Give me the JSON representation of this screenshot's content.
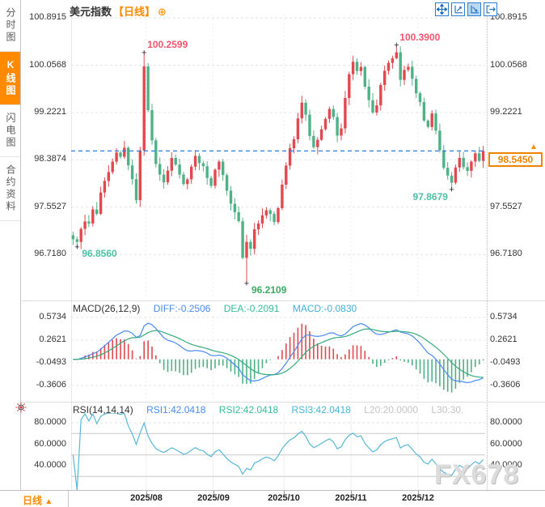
{
  "app": {
    "sidebar": {
      "tabs": [
        {
          "label": "分时图",
          "active": false
        },
        {
          "label": "K线图",
          "active": true
        },
        {
          "label": "闪电图",
          "active": false
        },
        {
          "label": "合约资料",
          "active": false
        }
      ]
    },
    "title": {
      "symbol_label": "美元指数",
      "period_label": "【日线】",
      "add_icon": "⊕"
    },
    "toolbar": {
      "icons": [
        "pan-icon",
        "scale-y-axis-icon",
        "scale-x-axis-icon",
        "exit-chart-icon"
      ]
    },
    "bottom_tab": {
      "label": "日线",
      "arrow": "▲"
    },
    "watermark": "FX678"
  },
  "chart_data": {
    "type": "candlestick+macd+rsi",
    "symbol": "美元指数",
    "interval": "日线",
    "x_axis": {
      "labels": [
        "2025/08",
        "2025/09",
        "2025/10",
        "2025/11",
        "2025/12"
      ],
      "label_indices": [
        19,
        36,
        54,
        71,
        88
      ]
    },
    "price_pane": {
      "y_ticks": [
        "100.8915",
        "100.0568",
        "99.2221",
        "98.3874",
        "97.5527",
        "96.7180"
      ],
      "y_range": [
        95.95,
        100.95
      ],
      "last_price": "98.5450",
      "last_price_value": 98.545,
      "annotations": [
        {
          "text": "100.2599",
          "index": 18,
          "value": 100.2599,
          "kind": "high",
          "color": "#f4566e"
        },
        {
          "text": "100.3900",
          "index": 82,
          "value": 100.39,
          "kind": "high",
          "color": "#f4566e"
        },
        {
          "text": "96.8560",
          "index": 1,
          "value": 96.856,
          "kind": "low",
          "color": "#4ec0a4"
        },
        {
          "text": "96.2109",
          "index": 44,
          "value": 96.2109,
          "kind": "low",
          "color": "#3bab63"
        },
        {
          "text": "97.8679",
          "index": 96,
          "value": 97.8679,
          "kind": "low",
          "align": "left",
          "color": "#4ec0a4"
        }
      ],
      "close_path": [
        96.98,
        96.92,
        97.18,
        97.32,
        97.28,
        97.5,
        97.45,
        97.82,
        98.0,
        98.18,
        98.35,
        98.5,
        98.42,
        98.6,
        98.3,
        98.05,
        97.68,
        98.55,
        100.05,
        99.25,
        98.75,
        98.3,
        98.15,
        98.0,
        98.2,
        98.42,
        98.3,
        98.12,
        97.95,
        98.05,
        98.25,
        98.48,
        98.35,
        98.28,
        98.05,
        97.95,
        98.2,
        98.35,
        98.1,
        97.85,
        97.6,
        97.45,
        97.3,
        96.65,
        96.95,
        96.8,
        97.15,
        97.25,
        97.4,
        97.5,
        97.42,
        97.3,
        97.55,
        97.95,
        98.3,
        98.6,
        98.75,
        99.1,
        99.4,
        99.2,
        98.8,
        98.6,
        98.72,
        98.95,
        99.1,
        99.3,
        99.15,
        98.8,
        98.95,
        99.5,
        99.9,
        100.1,
        99.95,
        100.05,
        99.7,
        99.45,
        99.2,
        99.35,
        99.7,
        99.95,
        100.1,
        100.2,
        100.28,
        99.8,
        99.95,
        100.05,
        99.8,
        99.55,
        99.4,
        99.1,
        98.95,
        99.2,
        98.9,
        98.55,
        98.25,
        98.1,
        97.98,
        98.25,
        98.4,
        98.28,
        98.2,
        98.35,
        98.5,
        98.38,
        98.545
      ],
      "pinned": {
        "1": {
          "low": 96.856
        },
        "18": {
          "high": 100.2599
        },
        "44": {
          "low": 96.2109
        },
        "82": {
          "high": 100.39
        },
        "96": {
          "low": 97.8679
        },
        "104": {
          "close": 98.545
        }
      }
    },
    "macd_pane": {
      "label": "MACD(26,12,9)",
      "readings": [
        {
          "name": "DIFF",
          "text": "DIFF:-0.2506",
          "value": -0.2506,
          "color": "#4b8bf4"
        },
        {
          "name": "DEA",
          "text": "DEA:-0.2091",
          "value": -0.2091,
          "color": "#35bd9b"
        },
        {
          "name": "MACD",
          "text": "MACD:-0.0830",
          "value": -0.083,
          "color": "#45aede"
        }
      ],
      "y_ticks": [
        "0.5734",
        "0.2621",
        "-0.0493",
        "-0.3606"
      ],
      "y_range": [
        -0.538,
        0.5956
      ],
      "params": {
        "fast": 12,
        "slow": 26,
        "signal": 9
      }
    },
    "rsi_pane": {
      "label": "RSI(14,14,14)",
      "readings": [
        {
          "name": "RSI1",
          "text": "RSI1:42.0418",
          "value": 42.0418,
          "color": "#4b8bf4"
        },
        {
          "name": "RSI2",
          "text": "RSI2:42.0418",
          "value": 42.0418,
          "color": "#35bd9b"
        },
        {
          "name": "RSI3",
          "text": "RSI3:42.0418",
          "value": 42.0418,
          "color": "#45b8d8"
        },
        {
          "name": "L20",
          "text": "L20:20.0000",
          "value": 20.0,
          "color": "#c4c4c4"
        },
        {
          "name": "L30",
          "text": "L30:30.",
          "value": 30.0,
          "color": "#c4c4c4"
        }
      ],
      "y_ticks": [
        "80.0000",
        "60.0000",
        "40.0000"
      ],
      "y_range": [
        17.4,
        89.1
      ],
      "gridlines": [
        80,
        70,
        50,
        30
      ],
      "period": 14
    },
    "colors": {
      "up": "#e2484d",
      "down": "#4fb286",
      "last_line": "#2a7de1",
      "diff_line": "#4b8bf4",
      "dea_line": "#35ab7d",
      "rsi_line": "#58b8d8",
      "accent": "#ff8a00"
    }
  }
}
